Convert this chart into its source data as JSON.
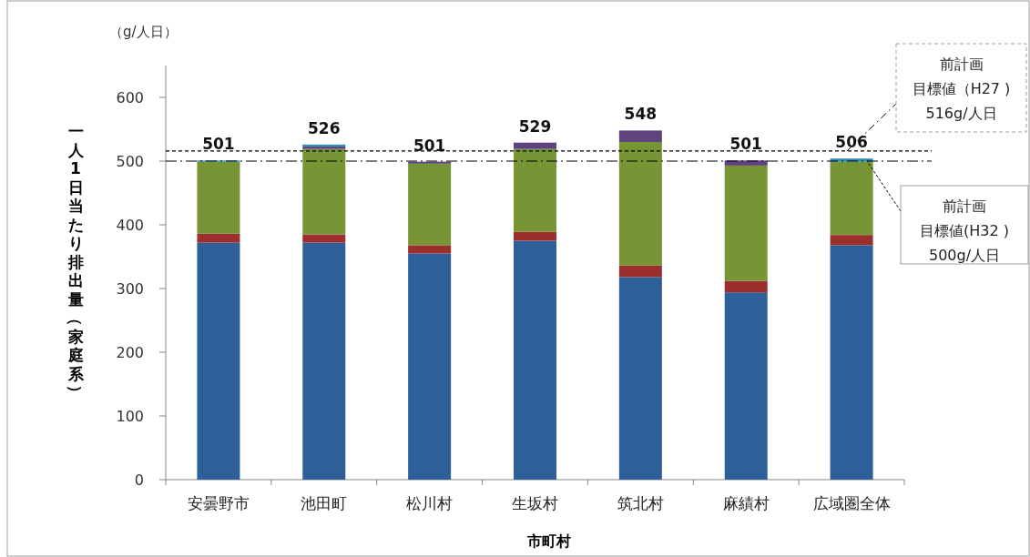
{
  "chart_data": {
    "type": "bar",
    "stacked": true,
    "categories": [
      "安曇野市",
      "池田町",
      "松川村",
      "生坂村",
      "筑北村",
      "麻績村",
      "広域圏全体"
    ],
    "series": [
      {
        "color": "#2e5f98",
        "values": [
          372,
          372,
          355,
          375,
          318,
          294,
          368
        ]
      },
      {
        "color": "#9c2e2e",
        "values": [
          14,
          13,
          13,
          14,
          18,
          18,
          16
        ]
      },
      {
        "color": "#779535",
        "values": [
          113,
          134,
          128,
          130,
          194,
          181,
          115
        ]
      },
      {
        "color": "#5e437f",
        "values": [
          0,
          4,
          3,
          10,
          18,
          8,
          null
        ]
      },
      {
        "color": "#2e8ab0",
        "values": [
          2,
          3,
          null,
          0,
          0,
          0,
          5
        ]
      }
    ],
    "totals": [
      "501",
      "526",
      "501",
      "529",
      "548",
      "501",
      "506"
    ],
    "ylim": [
      0,
      650
    ],
    "yticks": [
      0,
      100,
      200,
      300,
      400,
      500,
      600
    ],
    "xlabel": "市町村",
    "ylabel": "一人1日当たり排出量（家庭系）",
    "annotations": [
      "（g/人日）",
      "前計画",
      {
        "text": "目標値（H27 )",
        "x": "広域圏全体",
        "y": 516
      },
      "516g/人日",
      "前計画",
      "目標値(H32 )",
      "500g/人日"
    ],
    "ref_lines": [
      {
        "axis": "y",
        "value": 516,
        "line_style": "dashed",
        "color": "#000000"
      },
      {
        "axis": "y",
        "value": 500,
        "line_style": "dashdot",
        "color": "#000000"
      }
    ],
    "grid": false
  }
}
